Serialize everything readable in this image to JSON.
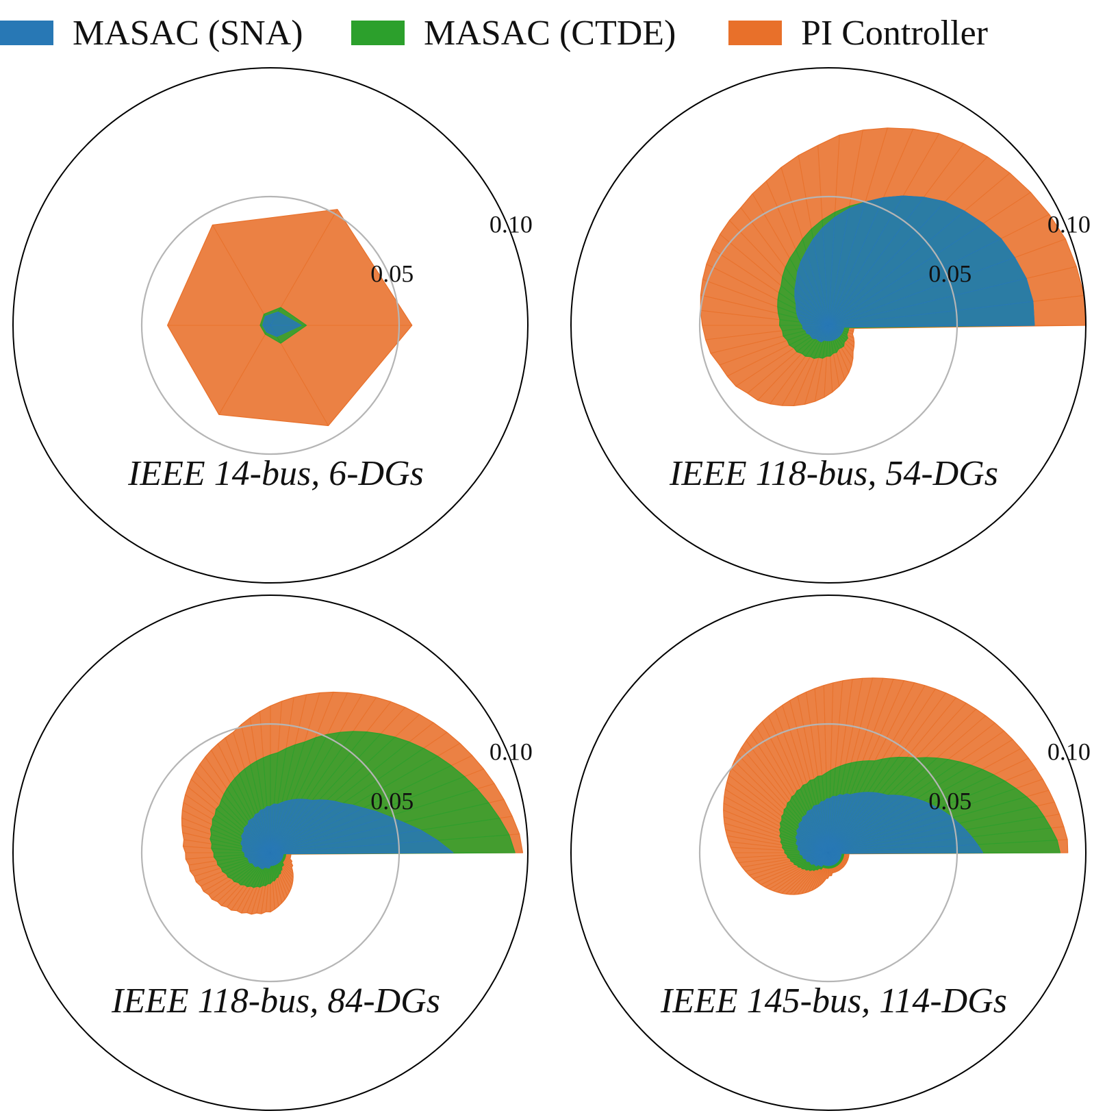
{
  "legend": {
    "items": [
      {
        "label": "MASAC (SNA)",
        "color": "#2878b5"
      },
      {
        "label": "MASAC (CTDE)",
        "color": "#2ca02c"
      },
      {
        "label": "PI Controller",
        "color": "#e8702a"
      }
    ]
  },
  "chart_data": [
    {
      "type": "polar-area",
      "title": "IEEE 14-bus, 6-DGs",
      "rmax": 0.1,
      "rticks": [
        0.05,
        0.1
      ],
      "rtick_labels": [
        "0.05",
        "0.10"
      ],
      "theta_range": [
        0,
        360
      ],
      "series": [
        {
          "name": "PI Controller",
          "color": "#e8702a",
          "values": [
            0.055,
            0.052,
            0.045,
            0.04,
            0.04,
            0.045
          ]
        },
        {
          "name": "MASAC (CTDE)",
          "color": "#2ca02c",
          "values": [
            0.014,
            0.008,
            0.005,
            0.004,
            0.004,
            0.008
          ]
        },
        {
          "name": "MASAC (SNA)",
          "color": "#2878b5",
          "values": [
            0.012,
            0.006,
            0.004,
            0.003,
            0.003,
            0.005
          ]
        }
      ]
    },
    {
      "type": "polar-area",
      "title": "IEEE 118-bus, 54-DGs",
      "rmax": 0.1,
      "rticks": [
        0.05,
        0.1
      ],
      "rtick_labels": [
        "0.05",
        "0.10"
      ],
      "theta_range": [
        0,
        360
      ],
      "series": [
        {
          "name": "PI Controller",
          "color": "#e8702a",
          "values": [
            0.1,
            0.1,
            0.099,
            0.098,
            0.096,
            0.094,
            0.092,
            0.09,
            0.088,
            0.086,
            0.083,
            0.08,
            0.077,
            0.074,
            0.07,
            0.067,
            0.064,
            0.061,
            0.059,
            0.057,
            0.056,
            0.055,
            0.054,
            0.053,
            0.052,
            0.051,
            0.05,
            0.049,
            0.048,
            0.047,
            0.045,
            0.044,
            0.043,
            0.041,
            0.04,
            0.038,
            0.036,
            0.034,
            0.032,
            0.03,
            0.028,
            0.026,
            0.024,
            0.022,
            0.02,
            0.018,
            0.016,
            0.014,
            0.013,
            0.012,
            0.011,
            0.01,
            0.01,
            0.01
          ]
        },
        {
          "name": "MASAC (CTDE)",
          "color": "#2ca02c",
          "values": [
            0.08,
            0.08,
            0.079,
            0.077,
            0.075,
            0.072,
            0.069,
            0.066,
            0.062,
            0.058,
            0.054,
            0.05,
            0.047,
            0.044,
            0.041,
            0.038,
            0.035,
            0.032,
            0.03,
            0.028,
            0.026,
            0.024,
            0.023,
            0.022,
            0.021,
            0.02,
            0.019,
            0.019,
            0.018,
            0.018,
            0.017,
            0.017,
            0.016,
            0.016,
            0.015,
            0.015,
            0.014,
            0.014,
            0.013,
            0.013,
            0.012,
            0.012,
            0.011,
            0.011,
            0.01,
            0.01,
            0.01,
            0.009,
            0.009,
            0.009,
            0.008,
            0.008,
            0.008,
            0.008
          ]
        },
        {
          "name": "MASAC (SNA)",
          "color": "#2878b5",
          "values": [
            0.08,
            0.08,
            0.079,
            0.077,
            0.075,
            0.072,
            0.069,
            0.066,
            0.062,
            0.058,
            0.054,
            0.05,
            0.046,
            0.042,
            0.038,
            0.034,
            0.03,
            0.027,
            0.024,
            0.021,
            0.019,
            0.017,
            0.015,
            0.014,
            0.013,
            0.012,
            0.011,
            0.01,
            0.01,
            0.009,
            0.009,
            0.008,
            0.008,
            0.008,
            0.007,
            0.007,
            0.007,
            0.007,
            0.006,
            0.006,
            0.006,
            0.006,
            0.006,
            0.006,
            0.006,
            0.006,
            0.006,
            0.006,
            0.006,
            0.006,
            0.006,
            0.006,
            0.006,
            0.006
          ]
        }
      ]
    },
    {
      "type": "polar-area",
      "title": "IEEE 118-bus, 84-DGs",
      "rmax": 0.1,
      "rticks": [
        0.05,
        0.1
      ],
      "rtick_labels": [
        "0.05",
        "0.10"
      ],
      "theta_range": [
        0,
        360
      ],
      "series": [
        {
          "name": "PI Controller",
          "color": "#e8702a",
          "values": [
            0.098,
            0.097,
            0.095,
            0.093,
            0.091,
            0.089,
            0.087,
            0.085,
            0.083,
            0.081,
            0.079,
            0.077,
            0.075,
            0.073,
            0.071,
            0.069,
            0.067,
            0.065,
            0.063,
            0.061,
            0.059,
            0.057,
            0.055,
            0.053,
            0.051,
            0.049,
            0.048,
            0.047,
            0.046,
            0.045,
            0.044,
            0.043,
            0.042,
            0.041,
            0.04,
            0.039,
            0.038,
            0.037,
            0.036,
            0.035,
            0.034,
            0.034,
            0.033,
            0.033,
            0.032,
            0.032,
            0.031,
            0.031,
            0.03,
            0.03,
            0.029,
            0.029,
            0.028,
            0.028,
            0.027,
            0.027,
            0.026,
            0.026,
            0.025,
            0.025,
            0.024,
            0.024,
            0.023,
            0.023,
            0.022,
            0.021,
            0.02,
            0.019,
            0.018,
            0.017,
            0.016,
            0.015,
            0.014,
            0.013,
            0.012,
            0.011,
            0.01,
            0.01,
            0.009,
            0.009,
            0.008,
            0.008,
            0.008,
            0.008
          ]
        },
        {
          "name": "MASAC (CTDE)",
          "color": "#2ca02c",
          "values": [
            0.095,
            0.093,
            0.09,
            0.087,
            0.084,
            0.081,
            0.078,
            0.075,
            0.072,
            0.069,
            0.066,
            0.063,
            0.06,
            0.057,
            0.054,
            0.051,
            0.048,
            0.045,
            0.043,
            0.041,
            0.039,
            0.038,
            0.037,
            0.036,
            0.035,
            0.034,
            0.033,
            0.032,
            0.031,
            0.03,
            0.029,
            0.028,
            0.027,
            0.027,
            0.026,
            0.026,
            0.025,
            0.025,
            0.024,
            0.024,
            0.023,
            0.023,
            0.022,
            0.022,
            0.021,
            0.021,
            0.02,
            0.02,
            0.019,
            0.019,
            0.018,
            0.018,
            0.017,
            0.017,
            0.016,
            0.016,
            0.015,
            0.015,
            0.014,
            0.014,
            0.013,
            0.013,
            0.012,
            0.012,
            0.011,
            0.011,
            0.01,
            0.01,
            0.009,
            0.009,
            0.008,
            0.008,
            0.007,
            0.007,
            0.007,
            0.006,
            0.006,
            0.006,
            0.006,
            0.006,
            0.006,
            0.006,
            0.006,
            0.006
          ]
        },
        {
          "name": "MASAC (SNA)",
          "color": "#2878b5",
          "values": [
            0.071,
            0.065,
            0.059,
            0.053,
            0.048,
            0.044,
            0.04,
            0.037,
            0.034,
            0.032,
            0.03,
            0.028,
            0.026,
            0.025,
            0.024,
            0.023,
            0.022,
            0.021,
            0.02,
            0.019,
            0.019,
            0.018,
            0.018,
            0.017,
            0.017,
            0.016,
            0.016,
            0.015,
            0.015,
            0.015,
            0.014,
            0.014,
            0.014,
            0.013,
            0.013,
            0.013,
            0.012,
            0.012,
            0.012,
            0.011,
            0.011,
            0.011,
            0.01,
            0.01,
            0.01,
            0.009,
            0.009,
            0.009,
            0.009,
            0.008,
            0.008,
            0.008,
            0.008,
            0.007,
            0.007,
            0.007,
            0.007,
            0.007,
            0.006,
            0.006,
            0.006,
            0.006,
            0.006,
            0.005,
            0.005,
            0.005,
            0.005,
            0.005,
            0.005,
            0.005,
            0.005,
            0.005,
            0.005,
            0.005,
            0.005,
            0.005,
            0.005,
            0.005,
            0.005,
            0.005,
            0.005,
            0.005,
            0.005,
            0.005
          ]
        }
      ]
    },
    {
      "type": "polar-area",
      "title": "IEEE 145-bus, 114-DGs",
      "rmax": 0.1,
      "rticks": [
        0.05,
        0.1
      ],
      "rtick_labels": [
        "0.05",
        "0.10"
      ],
      "theta_range": [
        0,
        360
      ],
      "series": [
        {
          "name": "PI Controller",
          "color": "#e8702a",
          "values": [
            0.093,
            0.093,
            0.092,
            0.091,
            0.09,
            0.089,
            0.088,
            0.087,
            0.086,
            0.085,
            0.084,
            0.083,
            0.082,
            0.081,
            0.08,
            0.079,
            0.078,
            0.077,
            0.076,
            0.075,
            0.074,
            0.073,
            0.072,
            0.071,
            0.07,
            0.069,
            0.068,
            0.067,
            0.066,
            0.065,
            0.064,
            0.063,
            0.062,
            0.061,
            0.06,
            0.059,
            0.058,
            0.057,
            0.056,
            0.055,
            0.054,
            0.053,
            0.052,
            0.051,
            0.05,
            0.049,
            0.048,
            0.047,
            0.046,
            0.045,
            0.044,
            0.043,
            0.042,
            0.041,
            0.04,
            0.039,
            0.038,
            0.037,
            0.036,
            0.035,
            0.034,
            0.033,
            0.032,
            0.031,
            0.03,
            0.029,
            0.028,
            0.027,
            0.026,
            0.025,
            0.024,
            0.023,
            0.022,
            0.021,
            0.02,
            0.019,
            0.018,
            0.017,
            0.016,
            0.015,
            0.014,
            0.013,
            0.012,
            0.011,
            0.01,
            0.01,
            0.009,
            0.009,
            0.009,
            0.008,
            0.008,
            0.008,
            0.008,
            0.008,
            0.008,
            0.008,
            0.008,
            0.008,
            0.008,
            0.008,
            0.008,
            0.008,
            0.008,
            0.008,
            0.008,
            0.008,
            0.008,
            0.008,
            0.008,
            0.008,
            0.008,
            0.008,
            0.008,
            0.008
          ]
        },
        {
          "name": "MASAC (CTDE)",
          "color": "#2ca02c",
          "values": [
            0.09,
            0.089,
            0.087,
            0.085,
            0.083,
            0.08,
            0.077,
            0.074,
            0.071,
            0.068,
            0.065,
            0.062,
            0.059,
            0.056,
            0.053,
            0.05,
            0.048,
            0.046,
            0.044,
            0.042,
            0.04,
            0.039,
            0.038,
            0.037,
            0.036,
            0.035,
            0.034,
            0.033,
            0.032,
            0.031,
            0.03,
            0.03,
            0.029,
            0.029,
            0.028,
            0.028,
            0.027,
            0.027,
            0.026,
            0.026,
            0.025,
            0.025,
            0.024,
            0.024,
            0.023,
            0.023,
            0.022,
            0.022,
            0.021,
            0.021,
            0.02,
            0.02,
            0.019,
            0.019,
            0.018,
            0.018,
            0.017,
            0.017,
            0.016,
            0.016,
            0.015,
            0.015,
            0.014,
            0.014,
            0.013,
            0.013,
            0.012,
            0.012,
            0.011,
            0.011,
            0.01,
            0.01,
            0.009,
            0.009,
            0.008,
            0.008,
            0.007,
            0.007,
            0.007,
            0.006,
            0.006,
            0.006,
            0.006,
            0.006,
            0.006,
            0.006,
            0.006,
            0.006,
            0.006,
            0.006,
            0.006,
            0.006,
            0.006,
            0.006,
            0.006,
            0.006,
            0.006,
            0.006,
            0.006,
            0.006,
            0.006,
            0.006,
            0.006,
            0.006,
            0.006,
            0.006,
            0.006,
            0.006,
            0.006,
            0.006,
            0.006,
            0.006,
            0.006,
            0.006
          ]
        },
        {
          "name": "MASAC (SNA)",
          "color": "#2878b5",
          "values": [
            0.06,
            0.058,
            0.056,
            0.054,
            0.052,
            0.05,
            0.048,
            0.046,
            0.044,
            0.042,
            0.04,
            0.038,
            0.036,
            0.034,
            0.032,
            0.031,
            0.03,
            0.029,
            0.028,
            0.027,
            0.026,
            0.025,
            0.024,
            0.024,
            0.023,
            0.023,
            0.022,
            0.022,
            0.021,
            0.021,
            0.02,
            0.02,
            0.019,
            0.019,
            0.019,
            0.018,
            0.018,
            0.018,
            0.017,
            0.017,
            0.017,
            0.016,
            0.016,
            0.016,
            0.015,
            0.015,
            0.015,
            0.014,
            0.014,
            0.014,
            0.013,
            0.013,
            0.013,
            0.012,
            0.012,
            0.012,
            0.011,
            0.011,
            0.011,
            0.01,
            0.01,
            0.01,
            0.009,
            0.009,
            0.009,
            0.008,
            0.008,
            0.008,
            0.008,
            0.007,
            0.007,
            0.007,
            0.007,
            0.006,
            0.006,
            0.006,
            0.006,
            0.006,
            0.005,
            0.005,
            0.005,
            0.005,
            0.005,
            0.005,
            0.005,
            0.005,
            0.005,
            0.005,
            0.005,
            0.005,
            0.005,
            0.005,
            0.005,
            0.005,
            0.005,
            0.005,
            0.005,
            0.005,
            0.005,
            0.005,
            0.005,
            0.005,
            0.005,
            0.005,
            0.005,
            0.005,
            0.005,
            0.005,
            0.005,
            0.005,
            0.005,
            0.005,
            0.005,
            0.005
          ]
        }
      ]
    }
  ]
}
